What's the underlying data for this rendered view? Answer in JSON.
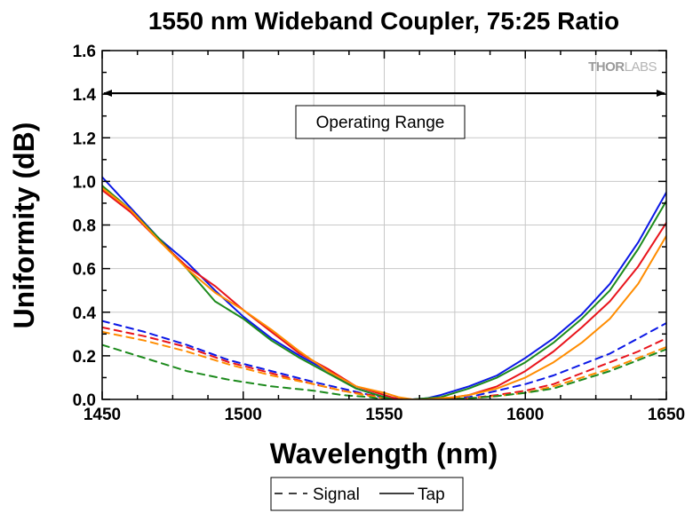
{
  "chart_data": {
    "type": "line",
    "title": "1550 nm Wideband Coupler, 75:25 Ratio",
    "xlabel": "Wavelength (nm)",
    "ylabel": "Uniformity (dB)",
    "xlim": [
      1450,
      1650
    ],
    "ylim": [
      0.0,
      1.6
    ],
    "x_ticks": [
      1450,
      1500,
      1550,
      1600,
      1650
    ],
    "x_tick_labels": [
      "1450",
      "1500",
      "1550",
      "1600",
      "1650"
    ],
    "y_ticks": [
      0.0,
      0.2,
      0.4,
      0.6,
      0.8,
      1.0,
      1.2,
      1.4,
      1.6
    ],
    "y_tick_labels": [
      "0.0",
      "0.2",
      "0.4",
      "0.6",
      "0.8",
      "1.0",
      "1.2",
      "1.4",
      "1.6"
    ],
    "grid": true,
    "watermark": {
      "part1": "THOR",
      "part2": "LABS"
    },
    "annotation": {
      "text": "Operating Range",
      "x_range": [
        1450,
        1650
      ],
      "y": 1.4
    },
    "legend": {
      "position": "bottom",
      "entries": [
        {
          "label": "Signal",
          "style": "dashed"
        },
        {
          "label": "Tap",
          "style": "solid"
        }
      ]
    },
    "colors": {
      "blue": "#0b18e6",
      "red": "#e8141c",
      "green": "#1c8a1c",
      "orange": "#ff8c00"
    },
    "series": [
      {
        "color": "blue",
        "style": "solid",
        "x": [
          1450,
          1460,
          1470,
          1480,
          1490,
          1500,
          1510,
          1520,
          1530,
          1540,
          1550,
          1555,
          1560,
          1565,
          1570,
          1575,
          1580,
          1590,
          1600,
          1610,
          1620,
          1630,
          1640,
          1650
        ],
        "y": [
          1.02,
          0.88,
          0.74,
          0.63,
          0.5,
          0.38,
          0.28,
          0.2,
          0.13,
          0.05,
          0.01,
          0.0,
          0.0,
          0.005,
          0.02,
          0.04,
          0.06,
          0.11,
          0.19,
          0.28,
          0.39,
          0.53,
          0.72,
          0.95
        ]
      },
      {
        "color": "green",
        "style": "solid",
        "x": [
          1450,
          1460,
          1470,
          1480,
          1490,
          1500,
          1510,
          1520,
          1530,
          1540,
          1550,
          1555,
          1560,
          1565,
          1570,
          1575,
          1580,
          1590,
          1600,
          1610,
          1620,
          1630,
          1640,
          1650
        ],
        "y": [
          0.98,
          0.87,
          0.74,
          0.6,
          0.45,
          0.37,
          0.27,
          0.19,
          0.12,
          0.05,
          0.01,
          0.0,
          0.0,
          0.005,
          0.01,
          0.03,
          0.05,
          0.1,
          0.17,
          0.26,
          0.37,
          0.5,
          0.69,
          0.91
        ]
      },
      {
        "color": "red",
        "style": "solid",
        "x": [
          1450,
          1460,
          1470,
          1480,
          1490,
          1500,
          1510,
          1520,
          1530,
          1540,
          1550,
          1555,
          1560,
          1565,
          1570,
          1575,
          1580,
          1590,
          1600,
          1610,
          1620,
          1630,
          1640,
          1650
        ],
        "y": [
          0.96,
          0.86,
          0.73,
          0.61,
          0.52,
          0.41,
          0.31,
          0.21,
          0.14,
          0.06,
          0.02,
          0.0,
          0.0,
          0.0,
          0.005,
          0.01,
          0.02,
          0.06,
          0.13,
          0.22,
          0.33,
          0.45,
          0.61,
          0.81
        ]
      },
      {
        "color": "orange",
        "style": "solid",
        "x": [
          1450,
          1460,
          1470,
          1480,
          1490,
          1500,
          1510,
          1520,
          1530,
          1540,
          1550,
          1555,
          1560,
          1565,
          1570,
          1575,
          1580,
          1590,
          1600,
          1610,
          1620,
          1630,
          1640,
          1650
        ],
        "y": [
          0.97,
          0.87,
          0.73,
          0.6,
          0.49,
          0.41,
          0.32,
          0.22,
          0.13,
          0.06,
          0.03,
          0.01,
          0.0,
          0.0,
          0.005,
          0.01,
          0.02,
          0.05,
          0.1,
          0.17,
          0.26,
          0.37,
          0.53,
          0.75
        ]
      },
      {
        "color": "blue",
        "style": "dashed",
        "x": [
          1450,
          1465,
          1480,
          1495,
          1510,
          1525,
          1535,
          1545,
          1550,
          1560,
          1570,
          1580,
          1590,
          1600,
          1610,
          1620,
          1630,
          1640,
          1650
        ],
        "y": [
          0.36,
          0.31,
          0.25,
          0.18,
          0.13,
          0.08,
          0.05,
          0.02,
          0.01,
          0.0,
          0.0,
          0.01,
          0.04,
          0.07,
          0.11,
          0.16,
          0.21,
          0.28,
          0.35
        ]
      },
      {
        "color": "red",
        "style": "dashed",
        "x": [
          1450,
          1465,
          1480,
          1495,
          1510,
          1525,
          1535,
          1545,
          1550,
          1560,
          1570,
          1580,
          1590,
          1600,
          1610,
          1620,
          1630,
          1640,
          1650
        ],
        "y": [
          0.33,
          0.29,
          0.24,
          0.17,
          0.12,
          0.07,
          0.04,
          0.02,
          0.005,
          0.0,
          0.0,
          0.005,
          0.02,
          0.04,
          0.07,
          0.12,
          0.17,
          0.22,
          0.28
        ]
      },
      {
        "color": "orange",
        "style": "dashed",
        "x": [
          1450,
          1465,
          1480,
          1495,
          1510,
          1525,
          1535,
          1545,
          1550,
          1560,
          1570,
          1580,
          1590,
          1600,
          1610,
          1620,
          1630,
          1640,
          1650
        ],
        "y": [
          0.31,
          0.27,
          0.22,
          0.16,
          0.11,
          0.07,
          0.04,
          0.015,
          0.005,
          0.0,
          0.0,
          0.005,
          0.015,
          0.03,
          0.06,
          0.1,
          0.14,
          0.19,
          0.24
        ]
      },
      {
        "color": "green",
        "style": "dashed",
        "x": [
          1450,
          1465,
          1480,
          1495,
          1510,
          1525,
          1535,
          1545,
          1550,
          1560,
          1570,
          1580,
          1590,
          1600,
          1610,
          1620,
          1630,
          1640,
          1650
        ],
        "y": [
          0.25,
          0.19,
          0.13,
          0.09,
          0.06,
          0.04,
          0.02,
          0.01,
          0.0,
          0.0,
          0.0,
          0.005,
          0.015,
          0.03,
          0.05,
          0.09,
          0.13,
          0.18,
          0.23
        ]
      }
    ]
  }
}
